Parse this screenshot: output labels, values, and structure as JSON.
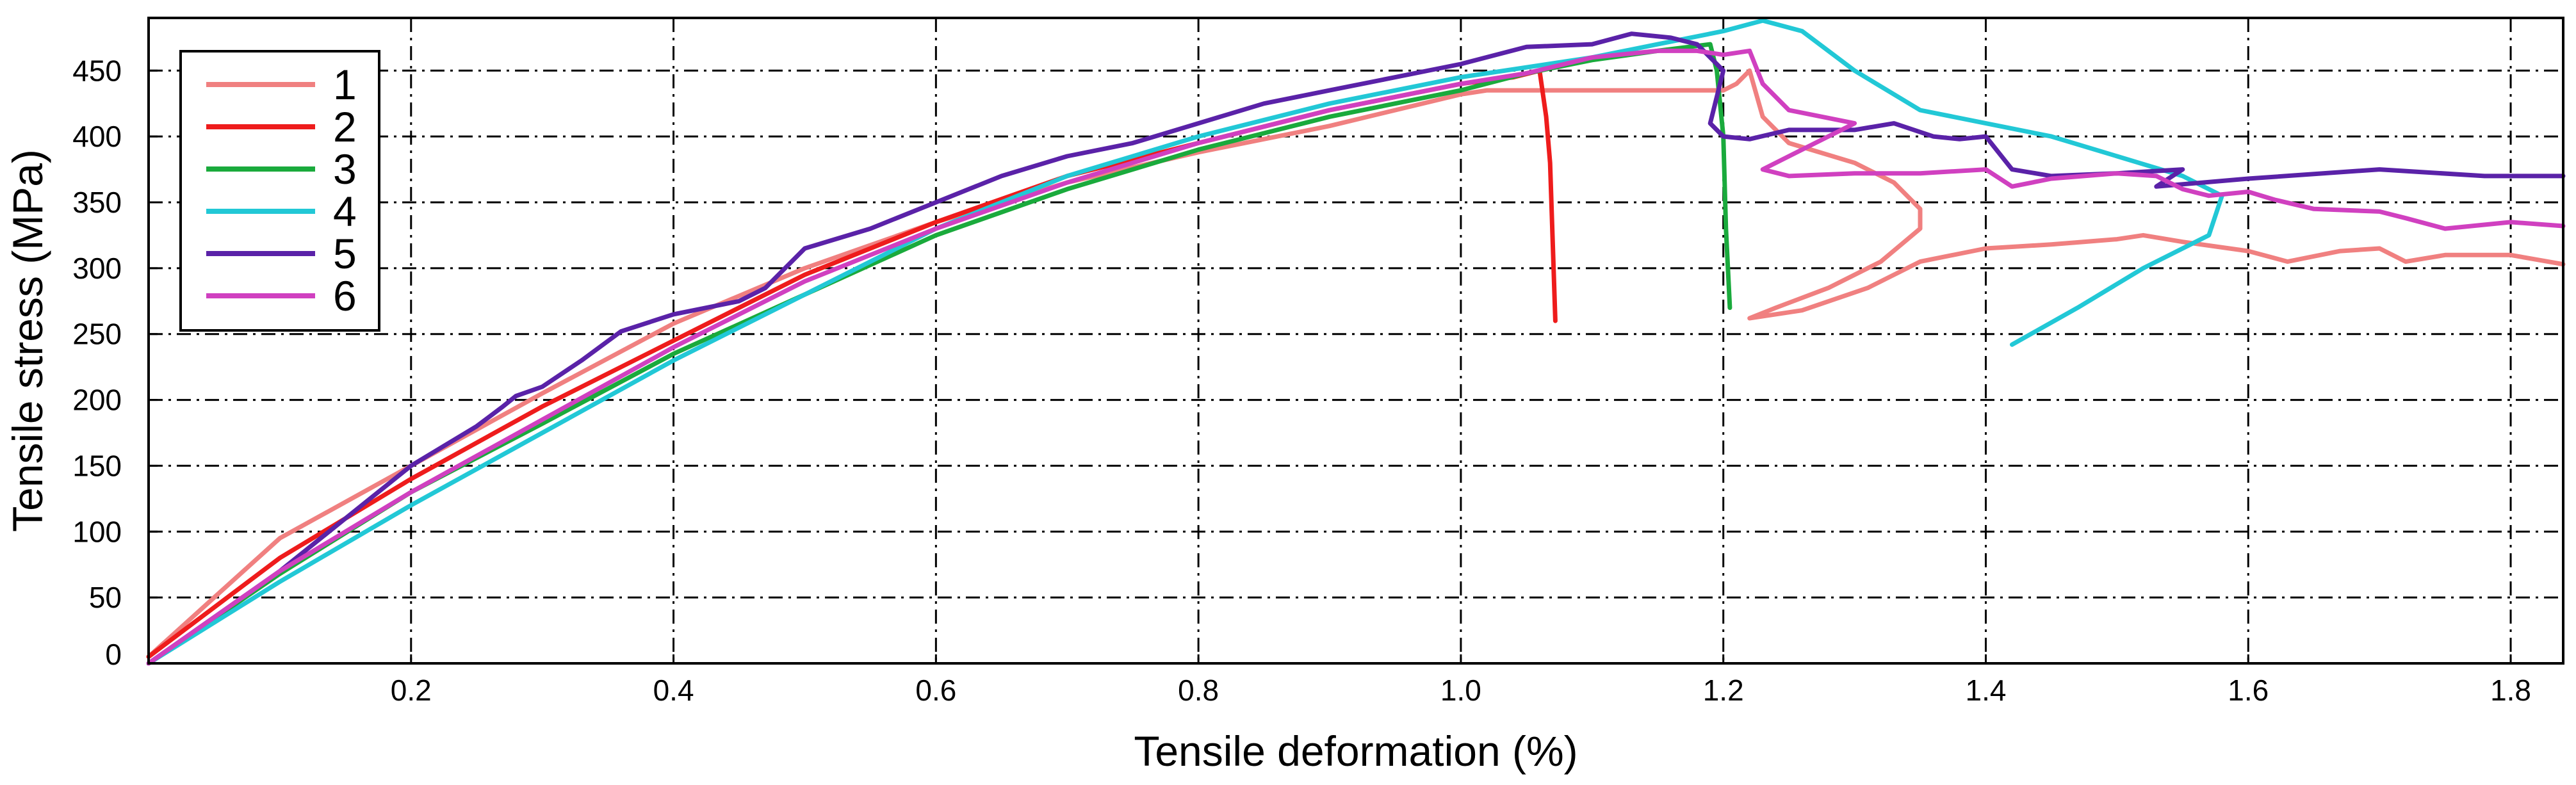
{
  "chart_data": {
    "type": "line",
    "xlabel": "Tensile deformation (%)",
    "ylabel": "Tensile stress (MPa)",
    "xlim": [
      0,
      1.84
    ],
    "ylim": [
      0,
      490
    ],
    "xticks": [
      0.2,
      0.4,
      0.6,
      0.8,
      1.0,
      1.2,
      1.4,
      1.6,
      1.8
    ],
    "xtick_labels": [
      "0.2",
      "0.4",
      "0.6",
      "0.8",
      "1.0",
      "1.2",
      "1.4",
      "1.6",
      "1.8"
    ],
    "yticks": [
      0,
      50,
      100,
      150,
      200,
      250,
      300,
      350,
      400,
      450
    ],
    "ytick_labels": [
      "0",
      "50",
      "100",
      "150",
      "200",
      "250",
      "300",
      "350",
      "400",
      "450"
    ],
    "grid": true,
    "grid_style": "dash-dot",
    "legend_position": "upper-left",
    "series": [
      {
        "name": "1",
        "color": "#f08080",
        "points": [
          [
            0,
            5
          ],
          [
            0.05,
            50
          ],
          [
            0.1,
            95
          ],
          [
            0.2,
            150
          ],
          [
            0.3,
            205
          ],
          [
            0.4,
            258
          ],
          [
            0.5,
            300
          ],
          [
            0.6,
            335
          ],
          [
            0.7,
            365
          ],
          [
            0.8,
            388
          ],
          [
            0.9,
            408
          ],
          [
            1.0,
            432
          ],
          [
            1.02,
            435
          ],
          [
            1.1,
            435
          ],
          [
            1.2,
            435
          ],
          [
            1.21,
            440
          ],
          [
            1.22,
            450
          ],
          [
            1.23,
            415
          ],
          [
            1.25,
            395
          ],
          [
            1.3,
            380
          ],
          [
            1.33,
            365
          ],
          [
            1.35,
            345
          ],
          [
            1.35,
            330
          ],
          [
            1.32,
            305
          ],
          [
            1.28,
            285
          ],
          [
            1.24,
            270
          ],
          [
            1.22,
            262
          ],
          [
            1.26,
            268
          ],
          [
            1.31,
            285
          ],
          [
            1.35,
            305
          ],
          [
            1.4,
            315
          ],
          [
            1.45,
            318
          ],
          [
            1.5,
            322
          ],
          [
            1.52,
            325
          ],
          [
            1.55,
            320
          ],
          [
            1.6,
            313
          ],
          [
            1.63,
            305
          ],
          [
            1.67,
            313
          ],
          [
            1.7,
            315
          ],
          [
            1.72,
            305
          ],
          [
            1.75,
            310
          ],
          [
            1.8,
            310
          ],
          [
            1.84,
            303
          ]
        ]
      },
      {
        "name": "2",
        "color": "#ee1c1c",
        "points": [
          [
            0,
            5
          ],
          [
            0.1,
            80
          ],
          [
            0.2,
            140
          ],
          [
            0.3,
            195
          ],
          [
            0.4,
            245
          ],
          [
            0.5,
            295
          ],
          [
            0.6,
            335
          ],
          [
            0.7,
            370
          ],
          [
            0.8,
            395
          ],
          [
            0.9,
            420
          ],
          [
            1.0,
            440
          ],
          [
            1.04,
            445
          ],
          [
            1.06,
            450
          ],
          [
            1.065,
            415
          ],
          [
            1.068,
            380
          ],
          [
            1.07,
            320
          ],
          [
            1.072,
            260
          ]
        ]
      },
      {
        "name": "3",
        "color": "#1aaa3c",
        "points": [
          [
            0,
            0
          ],
          [
            0.1,
            68
          ],
          [
            0.2,
            130
          ],
          [
            0.3,
            182
          ],
          [
            0.4,
            235
          ],
          [
            0.5,
            280
          ],
          [
            0.6,
            325
          ],
          [
            0.7,
            360
          ],
          [
            0.8,
            390
          ],
          [
            0.9,
            415
          ],
          [
            1.0,
            435
          ],
          [
            1.05,
            448
          ],
          [
            1.1,
            458
          ],
          [
            1.15,
            465
          ],
          [
            1.19,
            470
          ],
          [
            1.195,
            450
          ],
          [
            1.2,
            400
          ],
          [
            1.202,
            330
          ],
          [
            1.205,
            270
          ]
        ]
      },
      {
        "name": "4",
        "color": "#22c8d6",
        "points": [
          [
            0,
            0
          ],
          [
            0.1,
            62
          ],
          [
            0.2,
            120
          ],
          [
            0.3,
            175
          ],
          [
            0.4,
            230
          ],
          [
            0.5,
            280
          ],
          [
            0.6,
            330
          ],
          [
            0.7,
            370
          ],
          [
            0.8,
            400
          ],
          [
            0.9,
            425
          ],
          [
            1.0,
            445
          ],
          [
            1.1,
            460
          ],
          [
            1.15,
            470
          ],
          [
            1.2,
            480
          ],
          [
            1.23,
            488
          ],
          [
            1.26,
            480
          ],
          [
            1.3,
            450
          ],
          [
            1.35,
            420
          ],
          [
            1.4,
            410
          ],
          [
            1.45,
            400
          ],
          [
            1.5,
            385
          ],
          [
            1.55,
            370
          ],
          [
            1.58,
            355
          ],
          [
            1.57,
            325
          ],
          [
            1.52,
            300
          ],
          [
            1.47,
            270
          ],
          [
            1.42,
            242
          ]
        ]
      },
      {
        "name": "5",
        "color": "#5a22a8",
        "points": [
          [
            0,
            0
          ],
          [
            0.05,
            35
          ],
          [
            0.1,
            70
          ],
          [
            0.15,
            110
          ],
          [
            0.2,
            150
          ],
          [
            0.25,
            180
          ],
          [
            0.27,
            195
          ],
          [
            0.28,
            203
          ],
          [
            0.3,
            210
          ],
          [
            0.33,
            230
          ],
          [
            0.36,
            252
          ],
          [
            0.4,
            265
          ],
          [
            0.45,
            275
          ],
          [
            0.47,
            285
          ],
          [
            0.5,
            315
          ],
          [
            0.55,
            330
          ],
          [
            0.6,
            350
          ],
          [
            0.65,
            370
          ],
          [
            0.7,
            385
          ],
          [
            0.75,
            395
          ],
          [
            0.8,
            410
          ],
          [
            0.85,
            425
          ],
          [
            0.9,
            435
          ],
          [
            0.95,
            445
          ],
          [
            1.0,
            455
          ],
          [
            1.05,
            468
          ],
          [
            1.1,
            470
          ],
          [
            1.13,
            478
          ],
          [
            1.16,
            475
          ],
          [
            1.18,
            470
          ],
          [
            1.2,
            450
          ],
          [
            1.19,
            410
          ],
          [
            1.2,
            400
          ],
          [
            1.22,
            398
          ],
          [
            1.25,
            405
          ],
          [
            1.3,
            405
          ],
          [
            1.33,
            410
          ],
          [
            1.36,
            400
          ],
          [
            1.38,
            398
          ],
          [
            1.4,
            400
          ],
          [
            1.42,
            375
          ],
          [
            1.45,
            370
          ],
          [
            1.5,
            372
          ],
          [
            1.55,
            375
          ],
          [
            1.53,
            362
          ],
          [
            1.6,
            368
          ],
          [
            1.7,
            375
          ],
          [
            1.78,
            370
          ],
          [
            1.84,
            370
          ]
        ]
      },
      {
        "name": "6",
        "color": "#d040c0",
        "points": [
          [
            0,
            0
          ],
          [
            0.1,
            70
          ],
          [
            0.2,
            130
          ],
          [
            0.3,
            185
          ],
          [
            0.4,
            240
          ],
          [
            0.5,
            290
          ],
          [
            0.6,
            330
          ],
          [
            0.7,
            365
          ],
          [
            0.8,
            395
          ],
          [
            0.9,
            420
          ],
          [
            1.0,
            440
          ],
          [
            1.05,
            448
          ],
          [
            1.1,
            460
          ],
          [
            1.15,
            465
          ],
          [
            1.18,
            465
          ],
          [
            1.2,
            462
          ],
          [
            1.22,
            465
          ],
          [
            1.23,
            440
          ],
          [
            1.25,
            420
          ],
          [
            1.3,
            410
          ],
          [
            1.28,
            400
          ],
          [
            1.25,
            385
          ],
          [
            1.23,
            375
          ],
          [
            1.25,
            370
          ],
          [
            1.3,
            372
          ],
          [
            1.35,
            372
          ],
          [
            1.4,
            375
          ],
          [
            1.42,
            362
          ],
          [
            1.45,
            368
          ],
          [
            1.5,
            372
          ],
          [
            1.53,
            370
          ],
          [
            1.55,
            360
          ],
          [
            1.57,
            355
          ],
          [
            1.6,
            358
          ],
          [
            1.62,
            352
          ],
          [
            1.65,
            345
          ],
          [
            1.7,
            343
          ],
          [
            1.72,
            338
          ],
          [
            1.75,
            330
          ],
          [
            1.8,
            335
          ],
          [
            1.84,
            332
          ]
        ]
      }
    ]
  }
}
